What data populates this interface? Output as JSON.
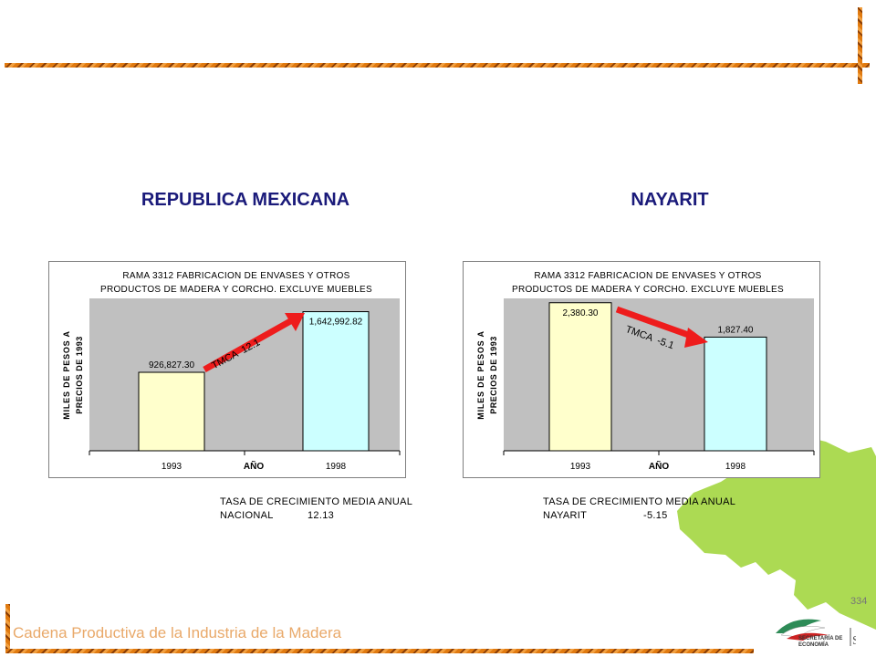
{
  "left": {
    "region": "REPUBLICA MEXICANA",
    "chart_title_line1": "RAMA 3312 FABRICACION DE ENVASES Y OTROS",
    "chart_title_line2": "PRODUCTOS DE MADERA Y CORCHO. EXCLUYE MUEBLES",
    "ylabel_line1": "MILES DE PESOS A",
    "ylabel_line2": "PRECIOS DE 1993",
    "xlabel": "AÑO",
    "arrow_label": "TMCA  12.1",
    "summary_line1": "TASA DE CRECIMIENTO MEDIA ANUAL",
    "summary_name": "NACIONAL",
    "summary_value": "12.13"
  },
  "right": {
    "region": "NAYARIT",
    "chart_title_line1": "RAMA 3312 FABRICACION DE ENVASES Y OTROS",
    "chart_title_line2": "PRODUCTOS DE MADERA Y CORCHO. EXCLUYE MUEBLES",
    "ylabel_line1": "MILES DE PESOS A",
    "ylabel_line2": "PRECIOS DE 1993",
    "xlabel": "AÑO",
    "arrow_label": "TMCA  -5.1",
    "summary_line1": "TASA DE CRECIMIENTO MEDIA ANUAL",
    "summary_name": "NAYARIT",
    "summary_value": "-5.15"
  },
  "footer": {
    "text": "Cadena Productiva de la Industria de la Madera",
    "page_number": "334",
    "logo_line1": "SECRETARÍA DE",
    "logo_line2": "ECONOMÍA"
  },
  "colors": {
    "bar_1993": "#ffffcc",
    "bar_1998": "#ccffff",
    "plot_bg": "#c0c0c0",
    "arrow": "#ee1c1c",
    "title": "#1a1a7a",
    "map": "#a8d84a"
  },
  "chart_data": [
    {
      "type": "bar",
      "title": "RAMA 3312 FABRICACION DE ENVASES Y OTROS PRODUCTOS DE MADERA Y CORCHO. EXCLUYE MUEBLES",
      "xlabel": "AÑO",
      "ylabel": "MILES DE PESOS A PRECIOS DE 1993",
      "categories": [
        "1993",
        "1998"
      ],
      "values": [
        926827.3,
        1642992.82
      ],
      "data_labels": [
        "926,827.30",
        "1,642,992.82"
      ],
      "ylim": [
        0,
        1800000
      ],
      "grid": false,
      "legend": "none"
    },
    {
      "type": "bar",
      "title": "RAMA 3312 FABRICACION DE ENVASES Y OTROS PRODUCTOS DE MADERA Y CORCHO. EXCLUYE MUEBLES",
      "xlabel": "AÑO",
      "ylabel": "MILES DE PESOS A PRECIOS DE 1993",
      "categories": [
        "1993",
        "1998"
      ],
      "values": [
        2380.3,
        1827.4
      ],
      "data_labels": [
        "2,380.30",
        "1,827.40"
      ],
      "ylim": [
        0,
        2450
      ],
      "grid": false,
      "legend": "none"
    }
  ]
}
